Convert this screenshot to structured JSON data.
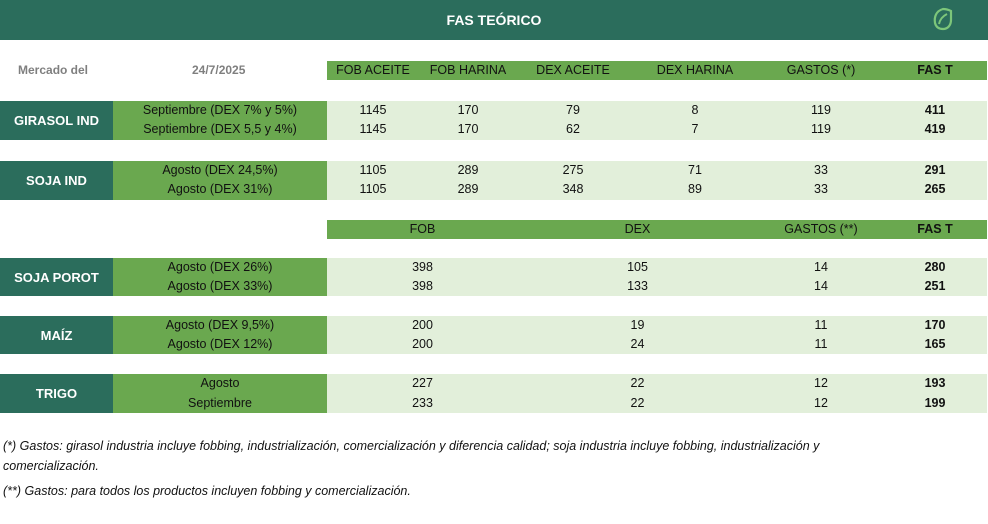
{
  "title": "FAS TEÓRICO",
  "logo_icon": "leaf-logo-icon",
  "colors": {
    "dark_green": "#2b6d5c",
    "mid_green": "#6aa84f",
    "light_green": "#e2efda"
  },
  "market": {
    "label": "Mercado del",
    "date": "24/7/2025"
  },
  "table1": {
    "headers": [
      "FOB ACEITE",
      "FOB HARINA",
      "DEX ACEITE",
      "DEX HARINA",
      "GASTOS (*)",
      "FAS T"
    ],
    "groups": [
      {
        "product": "GIRASOL IND",
        "rows": [
          {
            "label": "Septiembre (DEX 7% y 5%)",
            "values": [
              "1145",
              "170",
              "79",
              "8",
              "119",
              "411"
            ]
          },
          {
            "label": "Septiembre (DEX 5,5 y 4%)",
            "values": [
              "1145",
              "170",
              "62",
              "7",
              "119",
              "419"
            ]
          }
        ]
      },
      {
        "product": "SOJA IND",
        "rows": [
          {
            "label": "Agosto (DEX 24,5%)",
            "values": [
              "1105",
              "289",
              "275",
              "71",
              "33",
              "291"
            ]
          },
          {
            "label": "Agosto (DEX 31%)",
            "values": [
              "1105",
              "289",
              "348",
              "89",
              "33",
              "265"
            ]
          }
        ]
      }
    ]
  },
  "table2": {
    "headers": [
      "FOB",
      "DEX",
      "GASTOS (**)",
      "FAS T"
    ],
    "groups": [
      {
        "product": "SOJA POROT",
        "rows": [
          {
            "label": "Agosto (DEX 26%)",
            "values": [
              "398",
              "105",
              "14",
              "280"
            ]
          },
          {
            "label": "Agosto (DEX 33%)",
            "values": [
              "398",
              "133",
              "14",
              "251"
            ]
          }
        ]
      },
      {
        "product": "MAÍZ",
        "rows": [
          {
            "label": "Agosto (DEX 9,5%)",
            "values": [
              "200",
              "19",
              "11",
              "170"
            ]
          },
          {
            "label": "Agosto (DEX 12%)",
            "values": [
              "200",
              "24",
              "11",
              "165"
            ]
          }
        ]
      },
      {
        "product": "TRIGO",
        "rows": [
          {
            "label": "Agosto",
            "values": [
              "227",
              "22",
              "12",
              "193"
            ]
          },
          {
            "label": "Septiembre",
            "values": [
              "233",
              "22",
              "12",
              "199"
            ]
          }
        ]
      }
    ]
  },
  "notes": {
    "note1_line1": "(*) Gastos: girasol industria incluye fobbing, industrialización, comercialización y diferencia calidad; soja industria incluye fobbing, industrialización y",
    "note1_line2": "comercialización.",
    "note2": "(**) Gastos: para todos los productos incluyen fobbing y comercialización."
  }
}
